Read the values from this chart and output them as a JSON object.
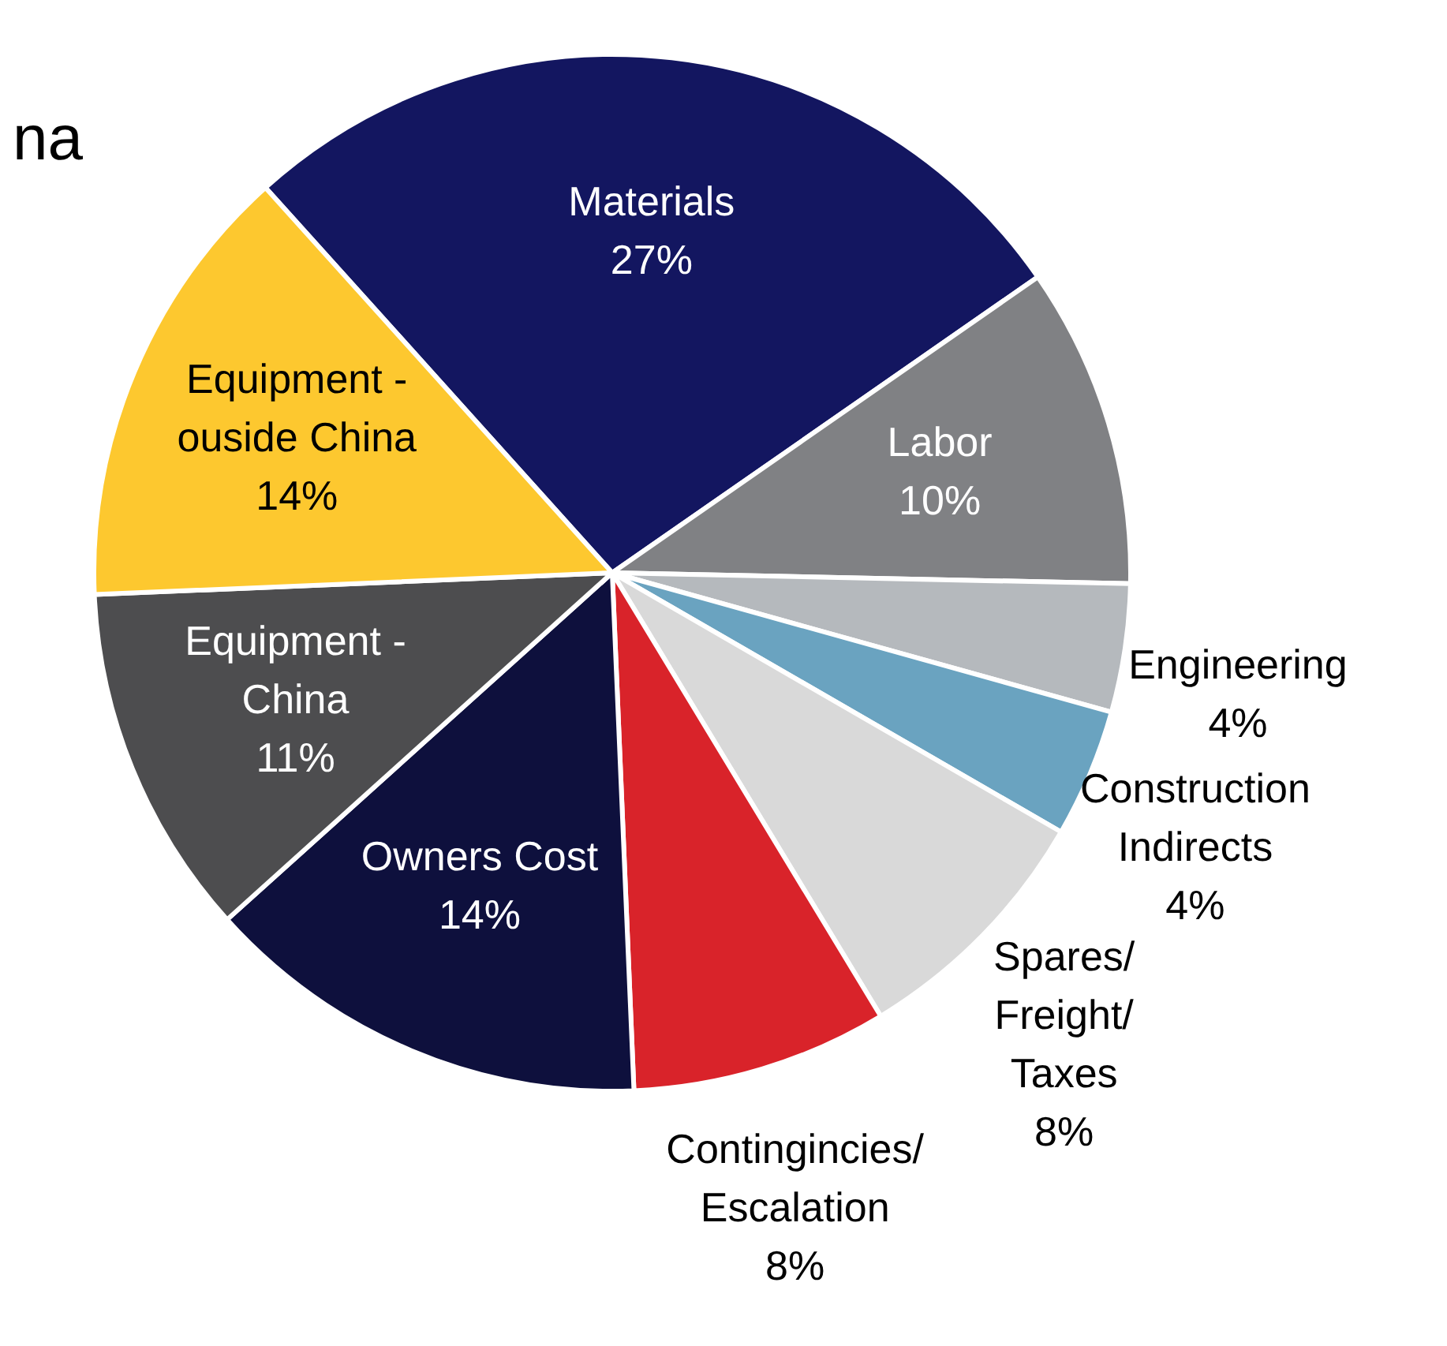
{
  "chart_data": {
    "type": "pie",
    "annotations": [
      "na"
    ],
    "categories": [
      "Materials",
      "Labor",
      "Engineering",
      "Construction Indirects",
      "Spares/Freight/Taxes",
      "Contingincies/Escalation",
      "Owners Cost",
      "Equipment - China",
      "Equipment - ouside China"
    ],
    "values": [
      27,
      10,
      4,
      4,
      8,
      8,
      14,
      11,
      14
    ],
    "colors": [
      "#131660",
      "#808184",
      "#b5b9bd",
      "#6aa3c0",
      "#d9d9d9",
      "#d9232a",
      "#0e103d",
      "#4d4d4f",
      "#fdc82f"
    ],
    "value_labels": [
      "27%",
      "10%",
      "4%",
      "4%",
      "8%",
      "8%",
      "14%",
      "11%",
      "14%"
    ],
    "legend": false
  }
}
